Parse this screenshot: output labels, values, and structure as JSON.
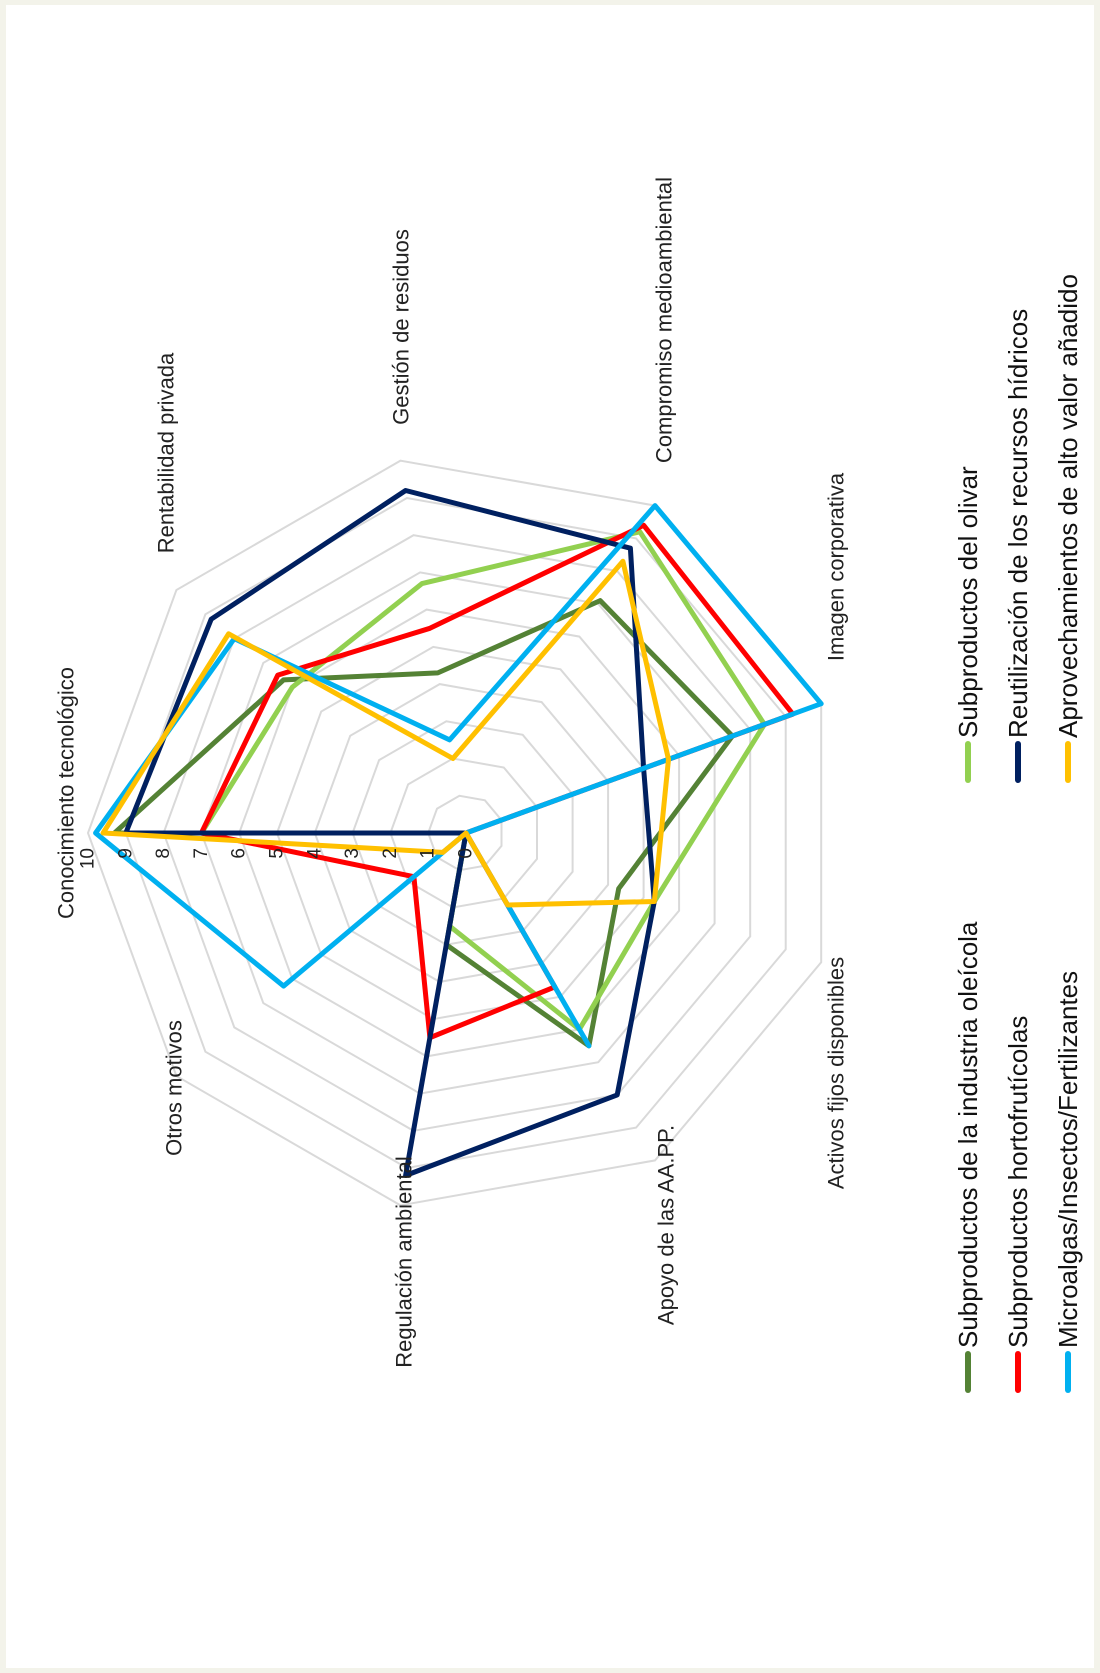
{
  "chart_data": {
    "type": "radar",
    "categories": [
      "Conocimiento tecnológico",
      "Rentabilidad privada",
      "Gestión de residuos",
      "Compromiso medioambiental",
      "Imagen corporativa",
      "Activos fijos disponibles",
      "Apoyo de las AA.PP.",
      "Regulación ambiental",
      "Otros motivos"
    ],
    "ticks": [
      "0",
      "1",
      "2",
      "3",
      "4",
      "5",
      "6",
      "7",
      "8",
      "9",
      "10"
    ],
    "range": [
      0,
      10
    ],
    "grid": true,
    "legend_position": "bottom",
    "orientation": "rotated 90° counter-clockwise",
    "series": [
      {
        "name": "Subproductos de la industria oleícola",
        "color": "#548235",
        "values": [
          9.3,
          6.3,
          4.3,
          7.1,
          7.5,
          4.3,
          6.5,
          3.0,
          0.0
        ]
      },
      {
        "name": "Subproductos del olivar",
        "color": "#92d050",
        "values": [
          7.0,
          6.0,
          6.7,
          9.2,
          8.4,
          5.3,
          6.0,
          2.5,
          0.0
        ]
      },
      {
        "name": "Subproductos hortofrutícolas",
        "color": "#ff0000",
        "values": [
          7.0,
          6.5,
          5.5,
          9.4,
          9.2,
          0.0,
          4.7,
          5.5,
          1.8
        ]
      },
      {
        "name": "Reutilización de los recursos hídricos",
        "color": "#002060",
        "values": [
          9.0,
          8.8,
          9.2,
          8.7,
          5.0,
          5.3,
          8.0,
          9.2,
          0.0
        ]
      },
      {
        "name": "Microalgas/Insectos/Fertilizantes",
        "color": "#00b0f0",
        "values": [
          9.8,
          8.0,
          2.5,
          10.0,
          10.0,
          0.0,
          6.5,
          0.0,
          6.3
        ]
      },
      {
        "name": "Aprovechamientos de alto valor añadido",
        "color": "#ffc000",
        "values": [
          9.6,
          8.2,
          2.0,
          8.3,
          5.7,
          5.3,
          2.2,
          0.0,
          0.8
        ]
      }
    ]
  }
}
